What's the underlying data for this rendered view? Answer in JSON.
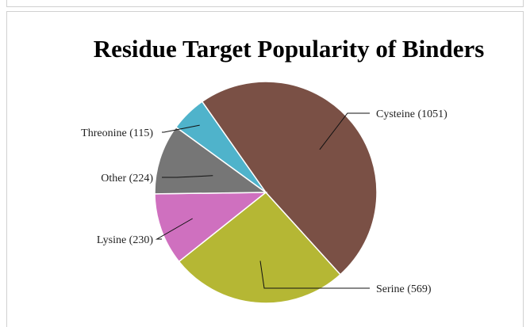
{
  "chart_data": {
    "type": "pie",
    "title": "Residue Target Popularity of Binders",
    "slices": [
      {
        "name": "Cysteine",
        "value": 1051,
        "label": "Cysteine (1051)",
        "color": "#7a5045"
      },
      {
        "name": "Serine",
        "value": 569,
        "label": "Serine (569)",
        "color": "#b5b734"
      },
      {
        "name": "Lysine",
        "value": 230,
        "label": "Lysine (230)",
        "color": "#cf70bf"
      },
      {
        "name": "Other",
        "value": 224,
        "label": "Other (224)",
        "color": "#767676"
      },
      {
        "name": "Threonine",
        "value": 115,
        "label": "Threonine (115)",
        "color": "#4fb3cb"
      }
    ],
    "legend": "none",
    "label_style": "leader-lines"
  }
}
